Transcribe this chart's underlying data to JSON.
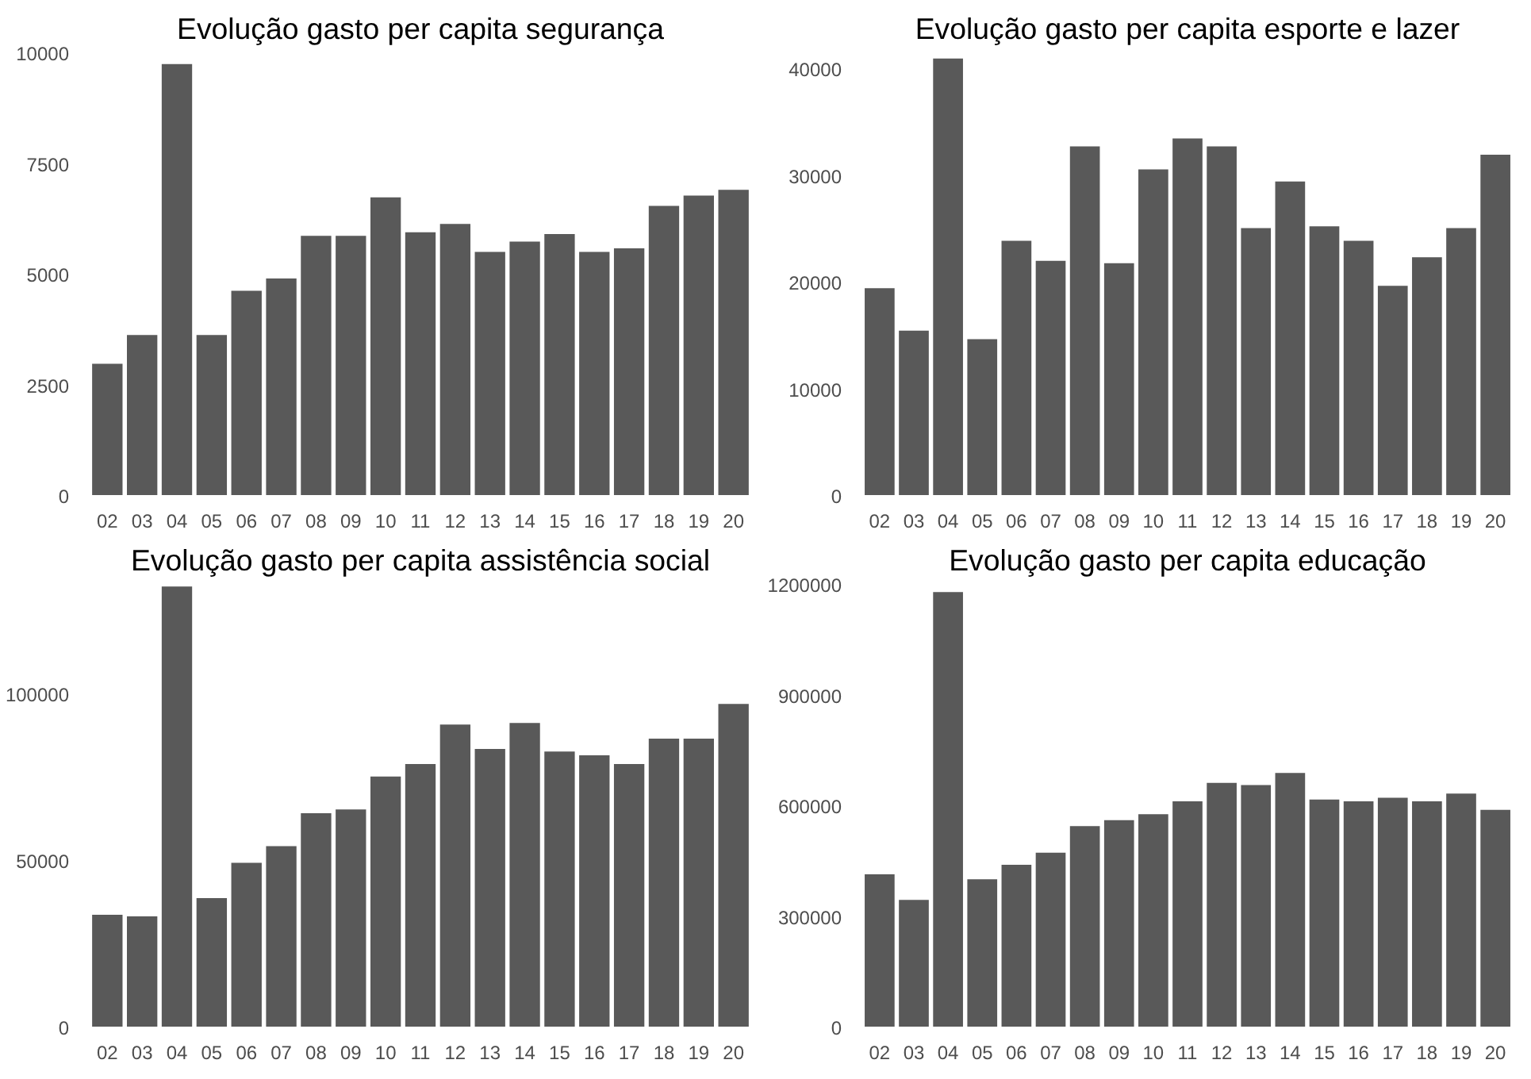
{
  "chart_data": [
    {
      "type": "bar",
      "title": "Evolução gasto per capita segurança",
      "categories": [
        "02",
        "03",
        "04",
        "05",
        "06",
        "07",
        "08",
        "09",
        "10",
        "11",
        "12",
        "13",
        "14",
        "15",
        "16",
        "17",
        "18",
        "19",
        "20"
      ],
      "color": "#595959",
      "values": [
        3000,
        3650,
        9770,
        3650,
        4650,
        4930,
        5890,
        5890,
        6760,
        5970,
        6160,
        5530,
        5760,
        5930,
        5530,
        5610,
        6570,
        6800,
        6930
      ],
      "ylim": [
        0,
        10000
      ],
      "yticks": [
        0,
        2500,
        5000,
        7500,
        10000
      ],
      "grid": false
    },
    {
      "type": "bar",
      "title": "Evolução gasto per capita esporte e lazer",
      "categories": [
        "02",
        "03",
        "04",
        "05",
        "06",
        "07",
        "08",
        "09",
        "10",
        "11",
        "12",
        "13",
        "14",
        "15",
        "16",
        "17",
        "18",
        "19",
        "20"
      ],
      "color": "#595959",
      "values": [
        19550,
        15570,
        41080,
        14770,
        23980,
        22100,
        32840,
        21880,
        30680,
        33580,
        32840,
        25170,
        29550,
        25340,
        23980,
        19770,
        22440,
        25170,
        32050
      ],
      "ylim": [
        0,
        41500
      ],
      "yticks": [
        0,
        10000,
        20000,
        30000,
        40000
      ],
      "grid": false
    },
    {
      "type": "bar",
      "title": "Evolução gasto per capita assistência social",
      "categories": [
        "02",
        "03",
        "04",
        "05",
        "06",
        "07",
        "08",
        "09",
        "10",
        "11",
        "12",
        "13",
        "14",
        "15",
        "16",
        "17",
        "18",
        "19",
        "20"
      ],
      "color": "#595959",
      "values": [
        34100,
        33600,
        132700,
        39100,
        49700,
        54700,
        64600,
        65700,
        75600,
        79400,
        91200,
        83900,
        91700,
        83100,
        82000,
        79400,
        87000,
        87000,
        97400
      ],
      "ylim": [
        0,
        133000
      ],
      "yticks": [
        0,
        50000,
        100000
      ],
      "grid": false
    },
    {
      "type": "bar",
      "title": "Evolução gasto per capita educação",
      "categories": [
        "02",
        "03",
        "04",
        "05",
        "06",
        "07",
        "08",
        "09",
        "10",
        "11",
        "12",
        "13",
        "14",
        "15",
        "16",
        "17",
        "18",
        "19",
        "20"
      ],
      "color": "#595959",
      "values": [
        417000,
        348000,
        1182000,
        404000,
        443000,
        476000,
        548000,
        564000,
        580000,
        615000,
        665000,
        659000,
        692000,
        620000,
        615000,
        625000,
        615000,
        636000,
        592000
      ],
      "ylim": [
        0,
        1200000
      ],
      "yticks": [
        0,
        300000,
        600000,
        900000,
        1200000
      ],
      "grid": false
    }
  ]
}
